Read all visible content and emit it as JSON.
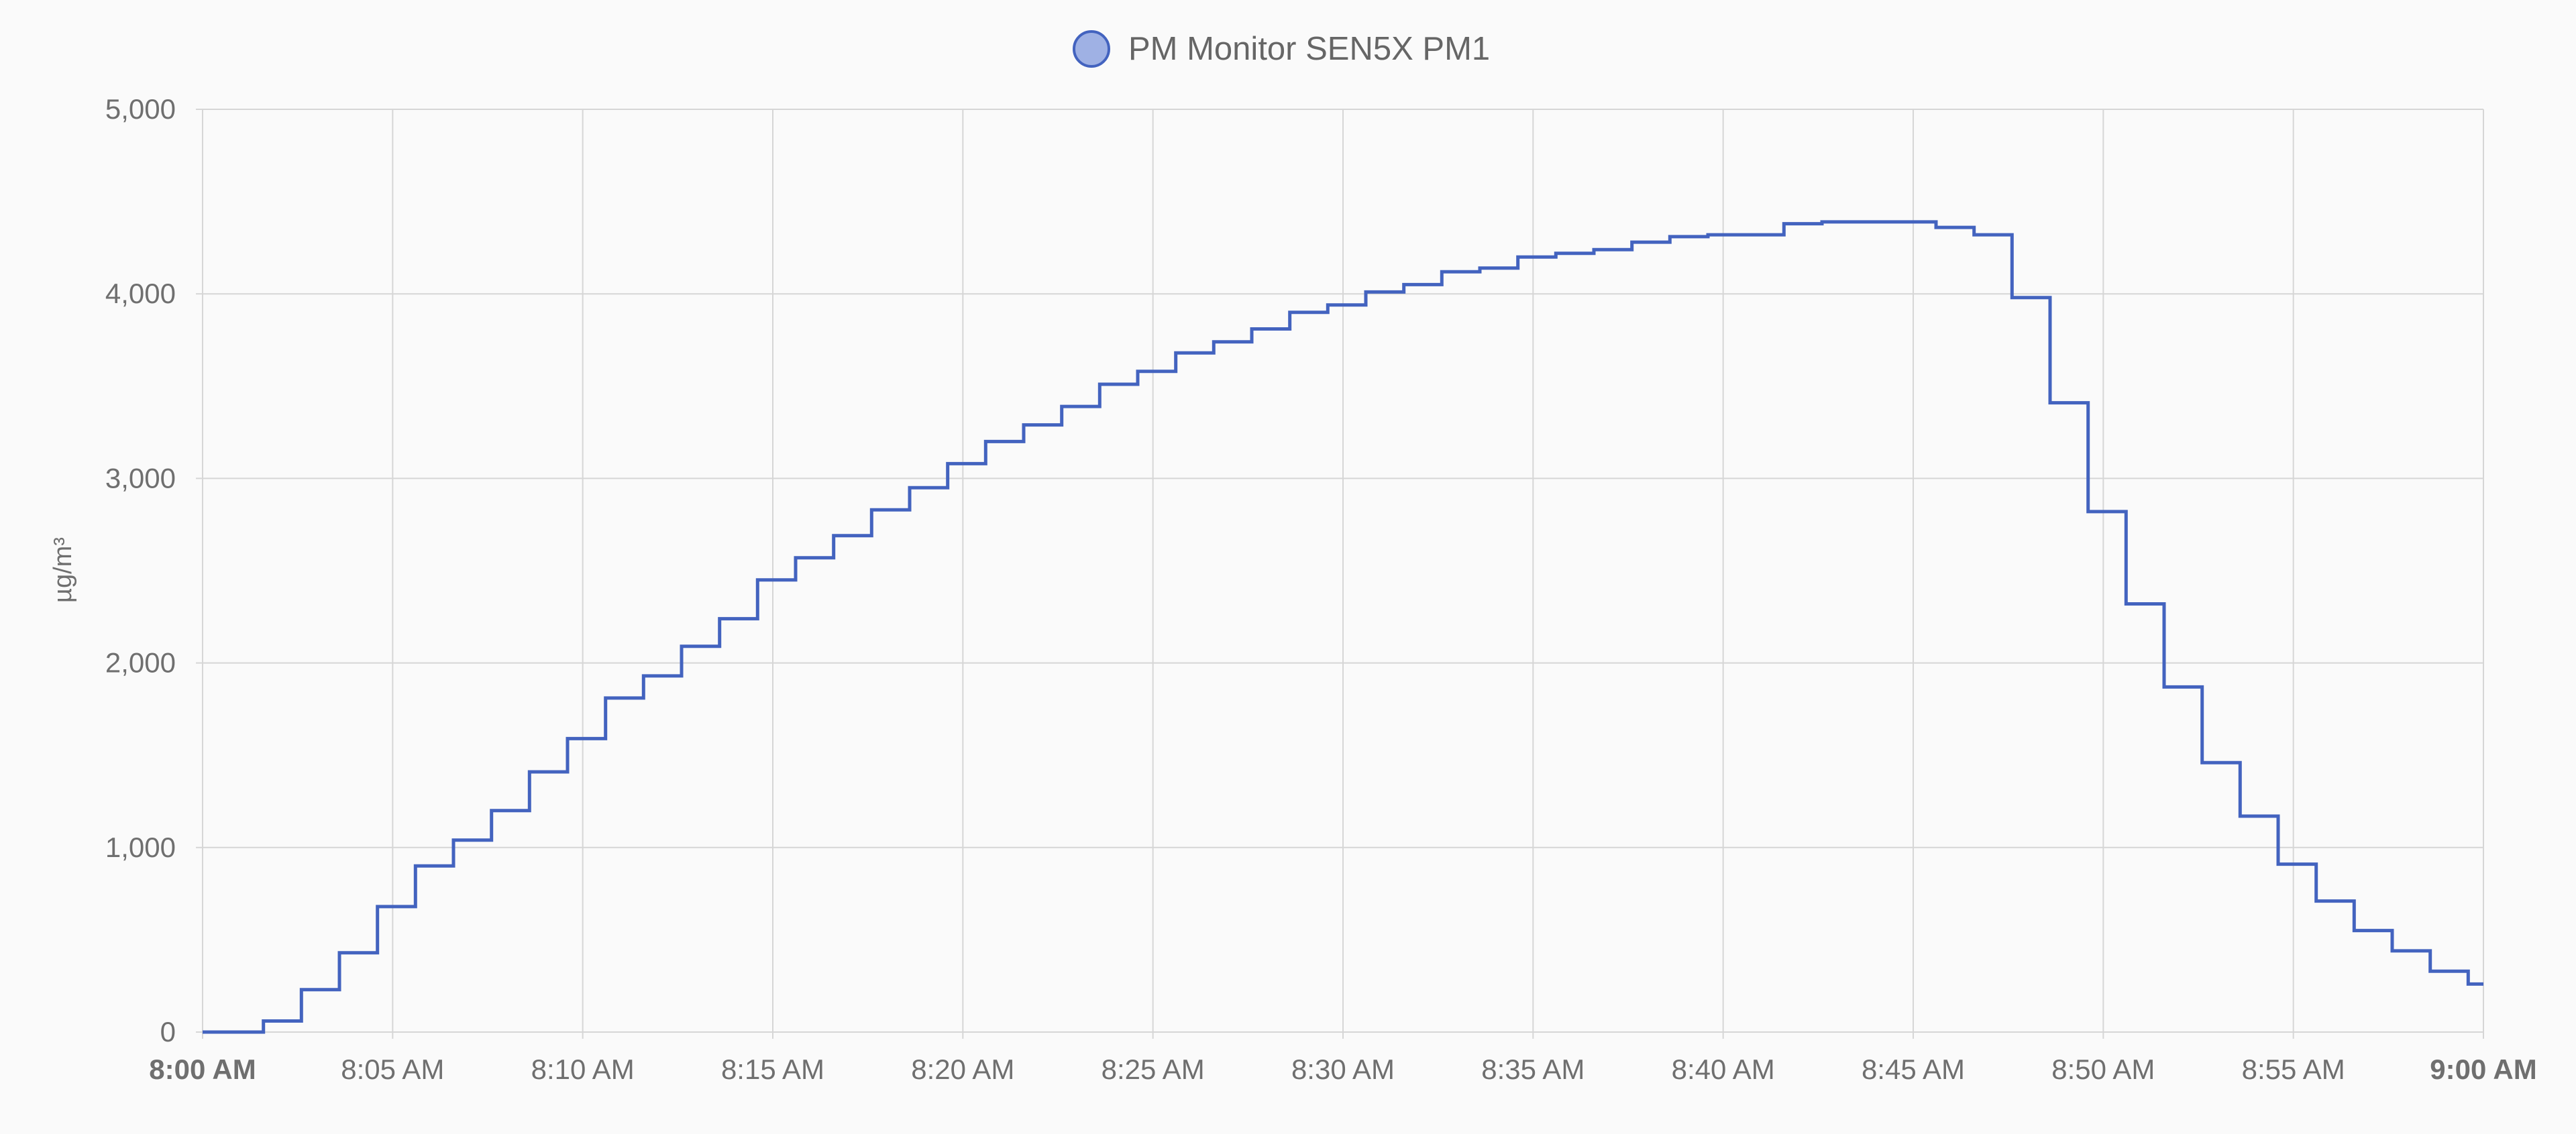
{
  "chart_data": {
    "type": "line",
    "step": true,
    "legend": {
      "position": "top",
      "entries": [
        {
          "name": "PM Monitor SEN5X PM1",
          "fill": "#9fb1e4",
          "stroke": "#4363bf"
        }
      ]
    },
    "ylabel": "µg/m³",
    "ylim": [
      0,
      5000
    ],
    "yticks": [
      {
        "value": 0,
        "label": "0"
      },
      {
        "value": 1000,
        "label": "1,000"
      },
      {
        "value": 2000,
        "label": "2,000"
      },
      {
        "value": 3000,
        "label": "3,000"
      },
      {
        "value": 4000,
        "label": "4,000"
      },
      {
        "value": 5000,
        "label": "5,000"
      }
    ],
    "xlim": [
      "8:00",
      "9:00"
    ],
    "xticks": [
      {
        "time": "8:00",
        "label": "8:00 AM",
        "bold": true
      },
      {
        "time": "8:05",
        "label": "8:05 AM",
        "bold": false
      },
      {
        "time": "8:10",
        "label": "8:10 AM",
        "bold": false
      },
      {
        "time": "8:15",
        "label": "8:15 AM",
        "bold": false
      },
      {
        "time": "8:20",
        "label": "8:20 AM",
        "bold": false
      },
      {
        "time": "8:25",
        "label": "8:25 AM",
        "bold": false
      },
      {
        "time": "8:30",
        "label": "8:30 AM",
        "bold": false
      },
      {
        "time": "8:35",
        "label": "8:35 AM",
        "bold": false
      },
      {
        "time": "8:40",
        "label": "8:40 AM",
        "bold": false
      },
      {
        "time": "8:45",
        "label": "8:45 AM",
        "bold": false
      },
      {
        "time": "8:50",
        "label": "8:50 AM",
        "bold": false
      },
      {
        "time": "8:55",
        "label": "8:55 AM",
        "bold": false
      },
      {
        "time": "9:00",
        "label": "9:00 AM",
        "bold": true
      }
    ],
    "grid": true,
    "series": [
      {
        "name": "PM Monitor SEN5X PM1",
        "color": "#4363bf",
        "points": [
          [
            "8:00",
            0
          ],
          [
            "8:01.6",
            60
          ],
          [
            "8:02.6",
            230
          ],
          [
            "8:03.6",
            430
          ],
          [
            "8:04.6",
            680
          ],
          [
            "8:05.6",
            900
          ],
          [
            "8:06.6",
            1040
          ],
          [
            "8:07.6",
            1200
          ],
          [
            "8:08.6",
            1410
          ],
          [
            "8:09.6",
            1590
          ],
          [
            "8:10.6",
            1810
          ],
          [
            "8:11.6",
            1930
          ],
          [
            "8:12.6",
            2090
          ],
          [
            "8:13.6",
            2240
          ],
          [
            "8:14.6",
            2450
          ],
          [
            "8:15.6",
            2570
          ],
          [
            "8:16.6",
            2690
          ],
          [
            "8:17.6",
            2830
          ],
          [
            "8:18.6",
            2950
          ],
          [
            "8:19.6",
            3080
          ],
          [
            "8:20.6",
            3200
          ],
          [
            "8:21.6",
            3290
          ],
          [
            "8:22.6",
            3390
          ],
          [
            "8:23.6",
            3510
          ],
          [
            "8:24.6",
            3580
          ],
          [
            "8:25.6",
            3680
          ],
          [
            "8:26.6",
            3740
          ],
          [
            "8:27.6",
            3810
          ],
          [
            "8:28.6",
            3900
          ],
          [
            "8:29.6",
            3940
          ],
          [
            "8:30.6",
            4010
          ],
          [
            "8:31.6",
            4050
          ],
          [
            "8:32.6",
            4120
          ],
          [
            "8:33.6",
            4140
          ],
          [
            "8:34.6",
            4200
          ],
          [
            "8:35.6",
            4220
          ],
          [
            "8:36.6",
            4240
          ],
          [
            "8:37.6",
            4280
          ],
          [
            "8:38.6",
            4310
          ],
          [
            "8:39.6",
            4320
          ],
          [
            "8:40.6",
            4320
          ],
          [
            "8:41.6",
            4380
          ],
          [
            "8:42.6",
            4390
          ],
          [
            "8:43.6",
            4390
          ],
          [
            "8:44.6",
            4390
          ],
          [
            "8:45.6",
            4360
          ],
          [
            "8:46.6",
            4320
          ],
          [
            "8:47.6",
            3980
          ],
          [
            "8:48.6",
            3410
          ],
          [
            "8:49.6",
            2820
          ],
          [
            "8:50.6",
            2320
          ],
          [
            "8:51.6",
            1870
          ],
          [
            "8:52.6",
            1460
          ],
          [
            "8:53.6",
            1170
          ],
          [
            "8:54.6",
            910
          ],
          [
            "8:55.6",
            710
          ],
          [
            "8:56.6",
            550
          ],
          [
            "8:57.6",
            440
          ],
          [
            "8:58.6",
            330
          ],
          [
            "8:59.6",
            260
          ],
          [
            "9:00",
            260
          ]
        ]
      }
    ]
  }
}
